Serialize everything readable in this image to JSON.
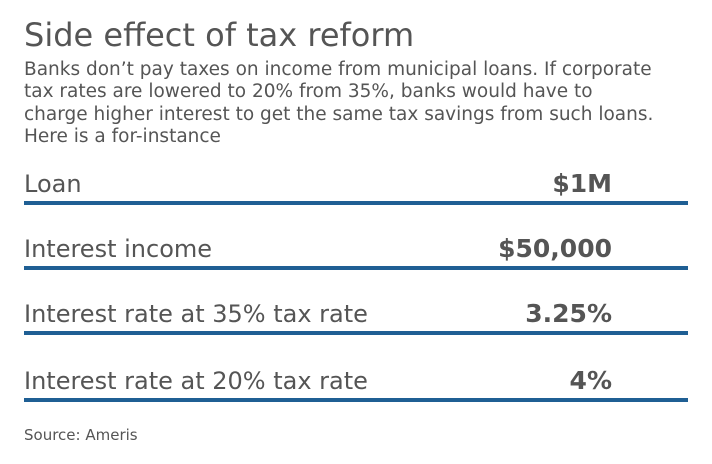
{
  "title": "Side effect of tax reform",
  "subtitle_lines": [
    "Banks don’t pay taxes on income from municipal loans. If corporate",
    "tax rates are lowered to 20% from 35%, banks would have to",
    "charge higher interest to get the same tax savings from such loans.",
    "Here is a for-instance"
  ],
  "rows": [
    {
      "label": "Loan",
      "value": "$1M"
    },
    {
      "label": "Interest income",
      "value": "$50,000"
    },
    {
      "label": "Interest rate at 35% tax rate",
      "value": "3.25%"
    },
    {
      "label": "Interest rate at 20% tax rate",
      "value": "4%"
    }
  ],
  "source": "Source: Ameris",
  "colors": {
    "text": "#555555",
    "rule": "#1f5f94",
    "background": "#ffffff"
  }
}
